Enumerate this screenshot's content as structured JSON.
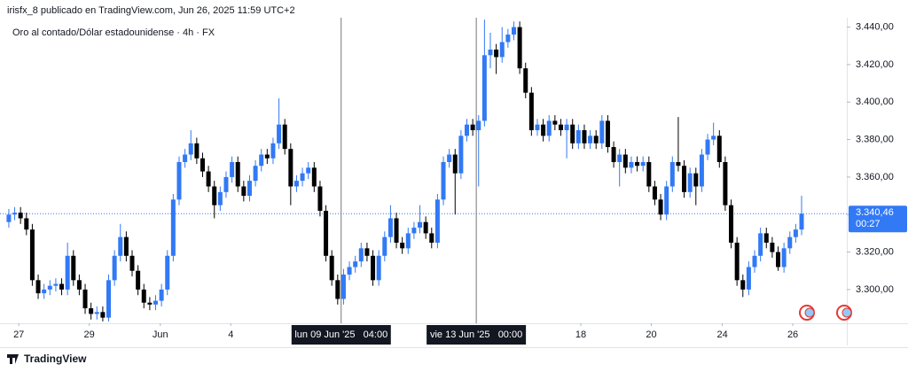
{
  "header": "irisfx_8 publicado en TradingView.com, Jun 26, 2025 11:59 UTC+2",
  "footer": "TradingView",
  "chart_data": {
    "type": "candlestick",
    "title": "Oro al contado/Dólar estadounidense · 4h · FX",
    "up_color": "#3179f5",
    "down_color": "#000000",
    "ylim": [
      3282,
      3445
    ],
    "yticks": [
      {
        "value": 3300,
        "label": "3.300,00"
      },
      {
        "value": 3320,
        "label": "3.320,00"
      },
      {
        "value": 3340,
        "label": "3.340,00"
      },
      {
        "value": 3360,
        "label": "3.360,00"
      },
      {
        "value": 3380,
        "label": "3.380,00"
      },
      {
        "value": 3400,
        "label": "3.400,00"
      },
      {
        "value": 3420,
        "label": "3.420,00"
      },
      {
        "value": 3440,
        "label": "3.440,00"
      }
    ],
    "xlim": [
      -1.5,
      142.7
    ],
    "xticks": [
      {
        "value": 1.7,
        "label": "27"
      },
      {
        "value": 13.7,
        "label": "29"
      },
      {
        "value": 25.8,
        "label": "Jun"
      },
      {
        "value": 37.8,
        "label": "4"
      },
      {
        "value": 97.4,
        "label": "18"
      },
      {
        "value": 109.4,
        "label": "20"
      },
      {
        "value": 121.5,
        "label": "24"
      },
      {
        "value": 133.5,
        "label": "26"
      }
    ],
    "crosshairs": [
      {
        "value": 56.6,
        "label": "lun 09 Jun '25   04:00"
      },
      {
        "value": 79.6,
        "label": "vie 13 Jun '25   00:00"
      }
    ],
    "last_price": {
      "value": 3340.46,
      "label": "3.340,46",
      "countdown": "00:27"
    },
    "grid": false,
    "open": [
      3336,
      3340,
      3341,
      3338,
      3332,
      3305,
      3298,
      3300,
      3302,
      3303,
      3300,
      3318,
      3305,
      3300,
      3290,
      3287,
      3288,
      3285,
      3305,
      3318,
      3328,
      3318,
      3310,
      3300,
      3293,
      3292,
      3294,
      3300,
      3318,
      3348,
      3368,
      3372,
      3378,
      3370,
      3363,
      3355,
      3345,
      3352,
      3360,
      3368,
      3355,
      3350,
      3358,
      3366,
      3372,
      3370,
      3378,
      3388,
      3375,
      3355,
      3358,
      3362,
      3365,
      3355,
      3342,
      3318,
      3305,
      3295,
      3308,
      3312,
      3315,
      3322,
      3318,
      3305,
      3318,
      3328,
      3338,
      3325,
      3322,
      3330,
      3333,
      3336,
      3330,
      3325,
      3348,
      3368,
      3372,
      3362,
      3382,
      3388,
      3385,
      3390,
      3425,
      3428,
      3424,
      3432,
      3436,
      3440,
      3418,
      3405,
      3385,
      3388,
      3382,
      3390,
      3388,
      3385,
      3388,
      3378,
      3385,
      3378,
      3382,
      3378,
      3390,
      3376,
      3368,
      3372,
      3365,
      3368,
      3366,
      3368,
      3355,
      3348,
      3340,
      3355,
      3368,
      3366,
      3352,
      3362,
      3355,
      3372,
      3380,
      3382,
      3368,
      3345,
      3325,
      3305,
      3300,
      3312,
      3318,
      3330,
      3325,
      3320,
      3312,
      3322,
      3328,
      3332
    ],
    "high": [
      3343,
      3344,
      3344,
      3341,
      3335,
      3308,
      3303,
      3305,
      3306,
      3306,
      3325,
      3321,
      3308,
      3303,
      3293,
      3291,
      3291,
      3308,
      3321,
      3335,
      3331,
      3321,
      3313,
      3303,
      3296,
      3297,
      3303,
      3321,
      3351,
      3371,
      3375,
      3385,
      3381,
      3373,
      3366,
      3358,
      3355,
      3363,
      3371,
      3371,
      3358,
      3361,
      3369,
      3375,
      3375,
      3381,
      3402,
      3391,
      3378,
      3361,
      3365,
      3368,
      3368,
      3358,
      3345,
      3321,
      3308,
      3311,
      3315,
      3318,
      3325,
      3325,
      3321,
      3321,
      3331,
      3345,
      3341,
      3328,
      3333,
      3336,
      3345,
      3339,
      3333,
      3351,
      3371,
      3375,
      3375,
      3385,
      3391,
      3391,
      3393,
      3444,
      3437,
      3431,
      3440,
      3439,
      3443,
      3443,
      3421,
      3408,
      3391,
      3391,
      3393,
      3393,
      3391,
      3391,
      3391,
      3388,
      3388,
      3385,
      3385,
      3393,
      3393,
      3379,
      3375,
      3375,
      3371,
      3371,
      3371,
      3371,
      3358,
      3351,
      3358,
      3371,
      3392,
      3369,
      3365,
      3365,
      3375,
      3383,
      3389,
      3385,
      3371,
      3348,
      3328,
      3308,
      3315,
      3321,
      3333,
      3333,
      3328,
      3323,
      3325,
      3331,
      3335,
      3350
    ],
    "low": [
      3333,
      3337,
      3335,
      3329,
      3302,
      3295,
      3295,
      3297,
      3299,
      3297,
      3297,
      3302,
      3297,
      3287,
      3284,
      3284,
      3283,
      3283,
      3302,
      3315,
      3315,
      3307,
      3297,
      3290,
      3289,
      3289,
      3291,
      3297,
      3315,
      3345,
      3365,
      3369,
      3367,
      3360,
      3352,
      3338,
      3342,
      3349,
      3357,
      3352,
      3347,
      3347,
      3355,
      3363,
      3367,
      3367,
      3375,
      3372,
      3345,
      3352,
      3355,
      3359,
      3352,
      3339,
      3315,
      3302,
      3292,
      3292,
      3305,
      3309,
      3312,
      3315,
      3302,
      3302,
      3315,
      3325,
      3322,
      3319,
      3319,
      3327,
      3330,
      3327,
      3322,
      3322,
      3345,
      3365,
      3340,
      3359,
      3379,
      3382,
      3355,
      3387,
      3418,
      3415,
      3421,
      3429,
      3433,
      3415,
      3402,
      3382,
      3382,
      3379,
      3379,
      3385,
      3382,
      3370,
      3375,
      3375,
      3375,
      3375,
      3375,
      3375,
      3373,
      3365,
      3355,
      3362,
      3362,
      3363,
      3363,
      3352,
      3345,
      3337,
      3337,
      3352,
      3363,
      3349,
      3349,
      3345,
      3352,
      3369,
      3377,
      3365,
      3342,
      3322,
      3302,
      3296,
      3297,
      3309,
      3315,
      3322,
      3317,
      3310,
      3309,
      3319,
      3325,
      3329
    ],
    "close": [
      3340,
      3341,
      3338,
      3332,
      3305,
      3298,
      3300,
      3302,
      3303,
      3300,
      3318,
      3305,
      3300,
      3290,
      3287,
      3288,
      3285,
      3305,
      3318,
      3328,
      3318,
      3310,
      3300,
      3293,
      3292,
      3294,
      3300,
      3318,
      3348,
      3368,
      3372,
      3378,
      3370,
      3363,
      3355,
      3345,
      3352,
      3360,
      3368,
      3355,
      3350,
      3358,
      3366,
      3372,
      3370,
      3378,
      3388,
      3375,
      3355,
      3358,
      3362,
      3365,
      3355,
      3342,
      3318,
      3305,
      3295,
      3308,
      3312,
      3315,
      3322,
      3318,
      3305,
      3318,
      3328,
      3338,
      3325,
      3322,
      3330,
      3333,
      3336,
      3330,
      3325,
      3348,
      3368,
      3372,
      3362,
      3382,
      3388,
      3385,
      3390,
      3425,
      3428,
      3424,
      3432,
      3436,
      3440,
      3418,
      3405,
      3385,
      3388,
      3382,
      3390,
      3388,
      3385,
      3388,
      3378,
      3385,
      3378,
      3382,
      3378,
      3390,
      3376,
      3368,
      3372,
      3365,
      3368,
      3366,
      3368,
      3355,
      3348,
      3340,
      3355,
      3368,
      3366,
      3352,
      3362,
      3355,
      3372,
      3380,
      3382,
      3368,
      3345,
      3325,
      3305,
      3300,
      3312,
      3318,
      3330,
      3325,
      3320,
      3312,
      3322,
      3328,
      3332,
      3340.46
    ]
  }
}
